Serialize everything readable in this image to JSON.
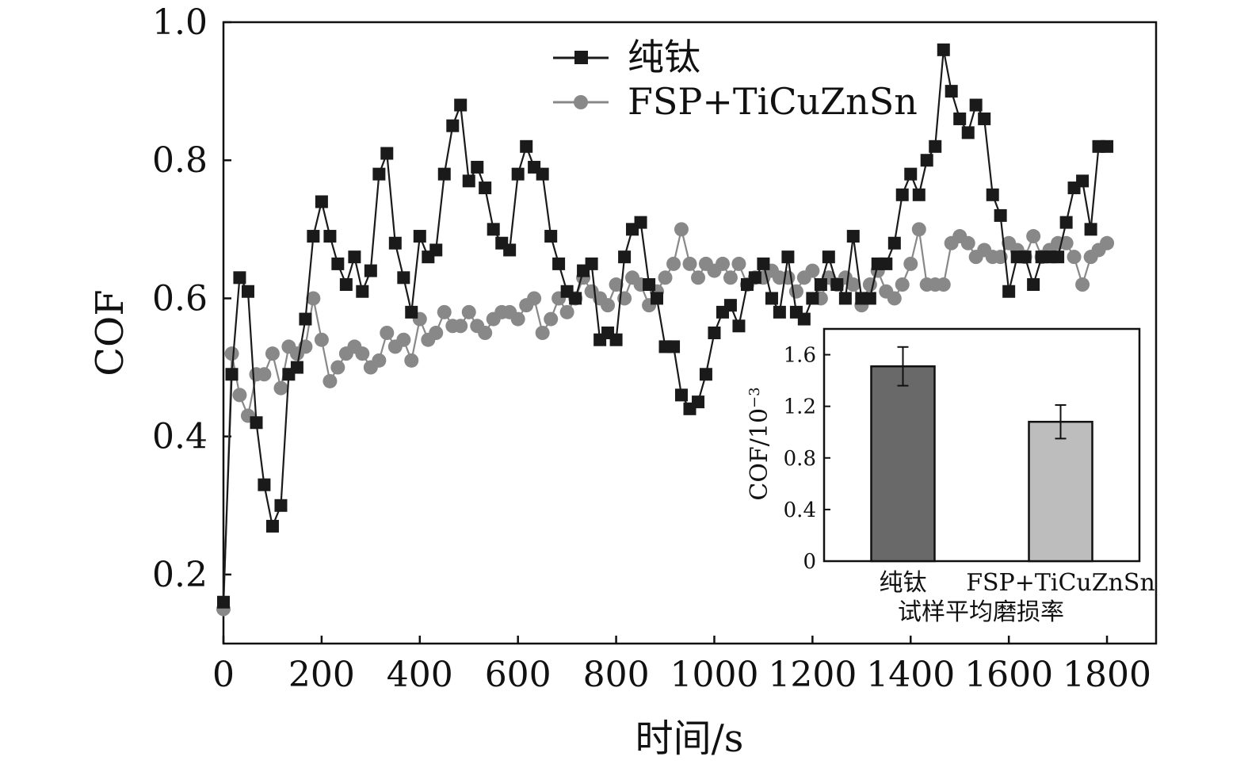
{
  "chart_data": [
    {
      "type": "line",
      "xlabel": "时间/s",
      "ylabel": "COF",
      "xlim": [
        0,
        1900
      ],
      "ylim": [
        0.1,
        1.0
      ],
      "xticks": [
        0,
        200,
        400,
        600,
        800,
        1000,
        1200,
        1400,
        1600,
        1800
      ],
      "xtick_labels": [
        "0",
        "200",
        "400",
        "600",
        "800",
        "1000",
        "1200",
        "1400",
        "1600",
        "1800"
      ],
      "yticks": [
        0.2,
        0.4,
        0.6,
        0.8,
        1.0
      ],
      "ytick_labels": [
        "0.2",
        "0.4",
        "0.6",
        "0.8",
        "1.0"
      ],
      "grid": false,
      "legend_position": "top-center",
      "series": [
        {
          "name": "纯钛",
          "color": "#1a1a1a",
          "marker": "square",
          "x": [
            0,
            17,
            33,
            50,
            67,
            83,
            100,
            117,
            133,
            150,
            167,
            183,
            200,
            217,
            233,
            250,
            267,
            283,
            300,
            317,
            333,
            350,
            367,
            383,
            400,
            417,
            433,
            450,
            467,
            483,
            500,
            517,
            533,
            550,
            567,
            583,
            600,
            617,
            633,
            650,
            667,
            683,
            700,
            717,
            733,
            750,
            767,
            783,
            800,
            817,
            833,
            850,
            867,
            883,
            900,
            917,
            933,
            950,
            967,
            983,
            1000,
            1017,
            1033,
            1050,
            1067,
            1083,
            1100,
            1117,
            1133,
            1150,
            1167,
            1183,
            1200,
            1217,
            1233,
            1250,
            1267,
            1283,
            1300,
            1317,
            1333,
            1350,
            1367,
            1383,
            1400,
            1417,
            1433,
            1450,
            1467,
            1483,
            1500,
            1517,
            1533,
            1550,
            1567,
            1583,
            1600,
            1617,
            1633,
            1650,
            1667,
            1683,
            1700,
            1717,
            1733,
            1750,
            1767,
            1783,
            1800
          ],
          "y": [
            0.16,
            0.49,
            0.63,
            0.61,
            0.42,
            0.33,
            0.27,
            0.3,
            0.49,
            0.5,
            0.57,
            0.69,
            0.74,
            0.69,
            0.65,
            0.62,
            0.66,
            0.61,
            0.64,
            0.78,
            0.81,
            0.68,
            0.63,
            0.58,
            0.69,
            0.66,
            0.67,
            0.78,
            0.85,
            0.88,
            0.77,
            0.79,
            0.76,
            0.7,
            0.68,
            0.67,
            0.78,
            0.82,
            0.79,
            0.78,
            0.69,
            0.65,
            0.61,
            0.6,
            0.64,
            0.65,
            0.54,
            0.55,
            0.54,
            0.66,
            0.7,
            0.71,
            0.62,
            0.6,
            0.53,
            0.53,
            0.46,
            0.44,
            0.45,
            0.49,
            0.55,
            0.58,
            0.59,
            0.56,
            0.62,
            0.63,
            0.65,
            0.6,
            0.58,
            0.66,
            0.58,
            0.57,
            0.6,
            0.62,
            0.66,
            0.62,
            0.6,
            0.69,
            0.6,
            0.6,
            0.65,
            0.65,
            0.68,
            0.75,
            0.78,
            0.75,
            0.8,
            0.82,
            0.96,
            0.9,
            0.86,
            0.84,
            0.88,
            0.86,
            0.75,
            0.72,
            0.61,
            0.66,
            0.66,
            0.62,
            0.66,
            0.66,
            0.66,
            0.71,
            0.76,
            0.77,
            0.7,
            0.82,
            0.82
          ]
        },
        {
          "name": "FSP+TiCuZnSn",
          "color": "#888888",
          "marker": "circle",
          "x": [
            0,
            17,
            33,
            50,
            67,
            83,
            100,
            117,
            133,
            150,
            167,
            183,
            200,
            217,
            233,
            250,
            267,
            283,
            300,
            317,
            333,
            350,
            367,
            383,
            400,
            417,
            433,
            450,
            467,
            483,
            500,
            517,
            533,
            550,
            567,
            583,
            600,
            617,
            633,
            650,
            667,
            683,
            700,
            717,
            733,
            750,
            767,
            783,
            800,
            817,
            833,
            850,
            867,
            883,
            900,
            917,
            933,
            950,
            967,
            983,
            1000,
            1017,
            1033,
            1050,
            1067,
            1083,
            1100,
            1117,
            1133,
            1150,
            1167,
            1183,
            1200,
            1217,
            1233,
            1250,
            1267,
            1283,
            1300,
            1317,
            1333,
            1350,
            1367,
            1383,
            1400,
            1417,
            1433,
            1450,
            1467,
            1483,
            1500,
            1517,
            1533,
            1550,
            1567,
            1583,
            1600,
            1617,
            1633,
            1650,
            1667,
            1683,
            1700,
            1717,
            1733,
            1750,
            1767,
            1783,
            1800
          ],
          "y": [
            0.15,
            0.52,
            0.46,
            0.43,
            0.49,
            0.49,
            0.52,
            0.47,
            0.53,
            0.52,
            0.53,
            0.6,
            0.54,
            0.48,
            0.5,
            0.52,
            0.53,
            0.52,
            0.5,
            0.51,
            0.55,
            0.53,
            0.54,
            0.51,
            0.57,
            0.54,
            0.55,
            0.58,
            0.56,
            0.56,
            0.58,
            0.56,
            0.55,
            0.57,
            0.58,
            0.58,
            0.57,
            0.59,
            0.6,
            0.55,
            0.57,
            0.6,
            0.58,
            0.6,
            0.63,
            0.61,
            0.6,
            0.59,
            0.62,
            0.6,
            0.63,
            0.62,
            0.59,
            0.61,
            0.63,
            0.65,
            0.7,
            0.65,
            0.63,
            0.65,
            0.64,
            0.65,
            0.63,
            0.65,
            0.62,
            0.63,
            0.63,
            0.64,
            0.63,
            0.63,
            0.61,
            0.63,
            0.64,
            0.6,
            0.63,
            0.62,
            0.63,
            0.62,
            0.59,
            0.62,
            0.64,
            0.61,
            0.6,
            0.62,
            0.65,
            0.7,
            0.62,
            0.62,
            0.62,
            0.68,
            0.69,
            0.68,
            0.66,
            0.67,
            0.66,
            0.66,
            0.68,
            0.67,
            0.66,
            0.69,
            0.66,
            0.67,
            0.68,
            0.68,
            0.66,
            0.62,
            0.66,
            0.67,
            0.68
          ]
        }
      ]
    },
    {
      "type": "bar",
      "position": "inset-lower-right",
      "xlabel": "试样平均磨损率",
      "ylabel": "COF/10",
      "ylabel_superscript": "−3",
      "ylim": [
        0,
        1.8
      ],
      "yticks": [
        0,
        0.4,
        0.8,
        1.2,
        1.6
      ],
      "ytick_labels": [
        "0",
        "0.4",
        "0.8",
        "1.2",
        "1.6"
      ],
      "categories": [
        "纯钛",
        "FSP+TiCuZnSn"
      ],
      "values": [
        1.51,
        1.08
      ],
      "errors": [
        0.15,
        0.13
      ],
      "colors": [
        "#696969",
        "#bdbdbd"
      ]
    }
  ]
}
